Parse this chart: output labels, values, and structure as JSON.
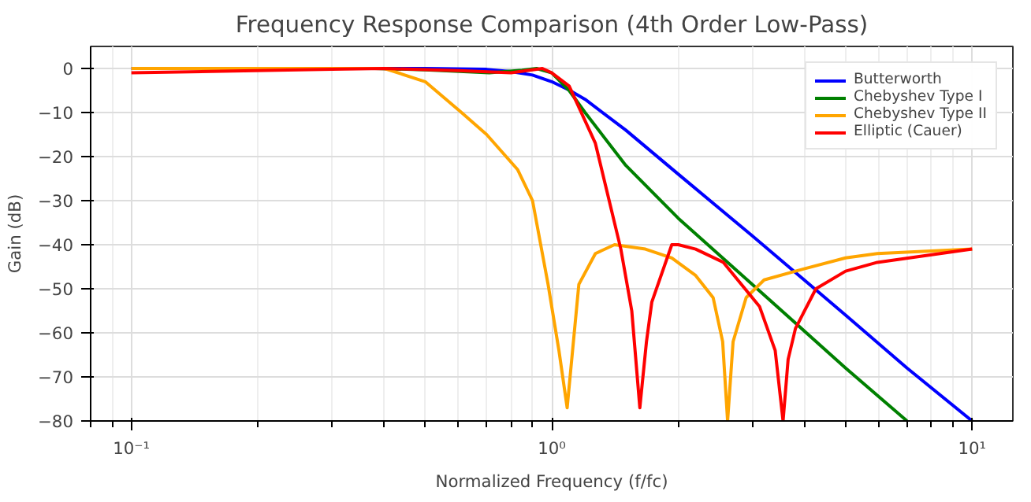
{
  "chart_data": {
    "type": "line",
    "title": "Frequency Response Comparison (4th Order Low-Pass)",
    "xlabel": "Normalized Frequency (f/fc)",
    "ylabel": "Gain (dB)",
    "log": "x",
    "xlim": [
      0.08,
      12.5
    ],
    "ylim": [
      -80,
      5
    ],
    "xticks": [
      {
        "value": 0.1,
        "label": "10⁻¹"
      },
      {
        "value": 1,
        "label": "10⁰"
      },
      {
        "value": 10,
        "label": "10¹"
      }
    ],
    "yticks": [
      -80,
      -70,
      -60,
      -50,
      -40,
      -30,
      -20,
      -10,
      0
    ],
    "grid": true,
    "legend": "top right",
    "line_style": "solid",
    "marker": "none",
    "series": [
      {
        "name": "Butterworth",
        "color": "#0000ff",
        "x": [
          0.1,
          0.5,
          0.7,
          0.8,
          0.9,
          1,
          1.1,
          1.2,
          1.5,
          2,
          3,
          5,
          7,
          10
        ],
        "values": [
          0,
          0,
          -0.2,
          -0.7,
          -1.5,
          -3,
          -4.9,
          -7,
          -14,
          -24,
          -38,
          -56,
          -68,
          -80
        ]
      },
      {
        "name": "Chebyshev Type I",
        "color": "#008000",
        "x": [
          0.38,
          0.5,
          0.71,
          0.85,
          0.92,
          1,
          1.1,
          1.2,
          1.5,
          2,
          3,
          5,
          7
        ],
        "values": [
          0,
          -0.3,
          -1,
          -0.4,
          0,
          -1,
          -5,
          -10,
          -22,
          -34,
          -49,
          -68,
          -80
        ]
      },
      {
        "name": "Chebyshev Type II",
        "color": "#ffa500",
        "x": [
          0.1,
          0.3,
          0.4,
          0.5,
          0.61,
          0.7,
          0.83,
          0.9,
          0.98,
          1.04,
          1.088,
          1.16,
          1.27,
          1.41,
          1.67,
          1.93,
          2.2,
          2.42,
          2.55,
          2.62,
          2.7,
          2.9,
          3.2,
          3.8,
          5,
          5.95,
          10
        ],
        "values": [
          0,
          0,
          0,
          -3,
          -10,
          -15,
          -23,
          -30,
          -49,
          -64,
          -77,
          -49,
          -42,
          -40,
          -41,
          -43,
          -47,
          -52,
          -62,
          -80,
          -62,
          -52,
          -48,
          -46,
          -43,
          -42,
          -41
        ]
      },
      {
        "name": "Elliptic (Cauer)",
        "color": "#ff0000",
        "x": [
          0.1,
          0.3,
          0.4,
          0.6,
          0.8,
          0.95,
          1,
          1.1,
          1.27,
          1.46,
          1.55,
          1.62,
          1.68,
          1.73,
          1.93,
          2.0,
          2.2,
          2.56,
          3.12,
          3.4,
          3.55,
          3.65,
          3.8,
          4.25,
          5,
          5.95,
          10
        ],
        "values": [
          -1,
          -0.2,
          0,
          -0.5,
          -1,
          0,
          -1,
          -4,
          -17,
          -41,
          -55,
          -77,
          -62,
          -53,
          -40,
          -40,
          -41,
          -44,
          -54,
          -64,
          -80,
          -66,
          -59,
          -50,
          -46,
          -44,
          -41
        ]
      }
    ]
  }
}
